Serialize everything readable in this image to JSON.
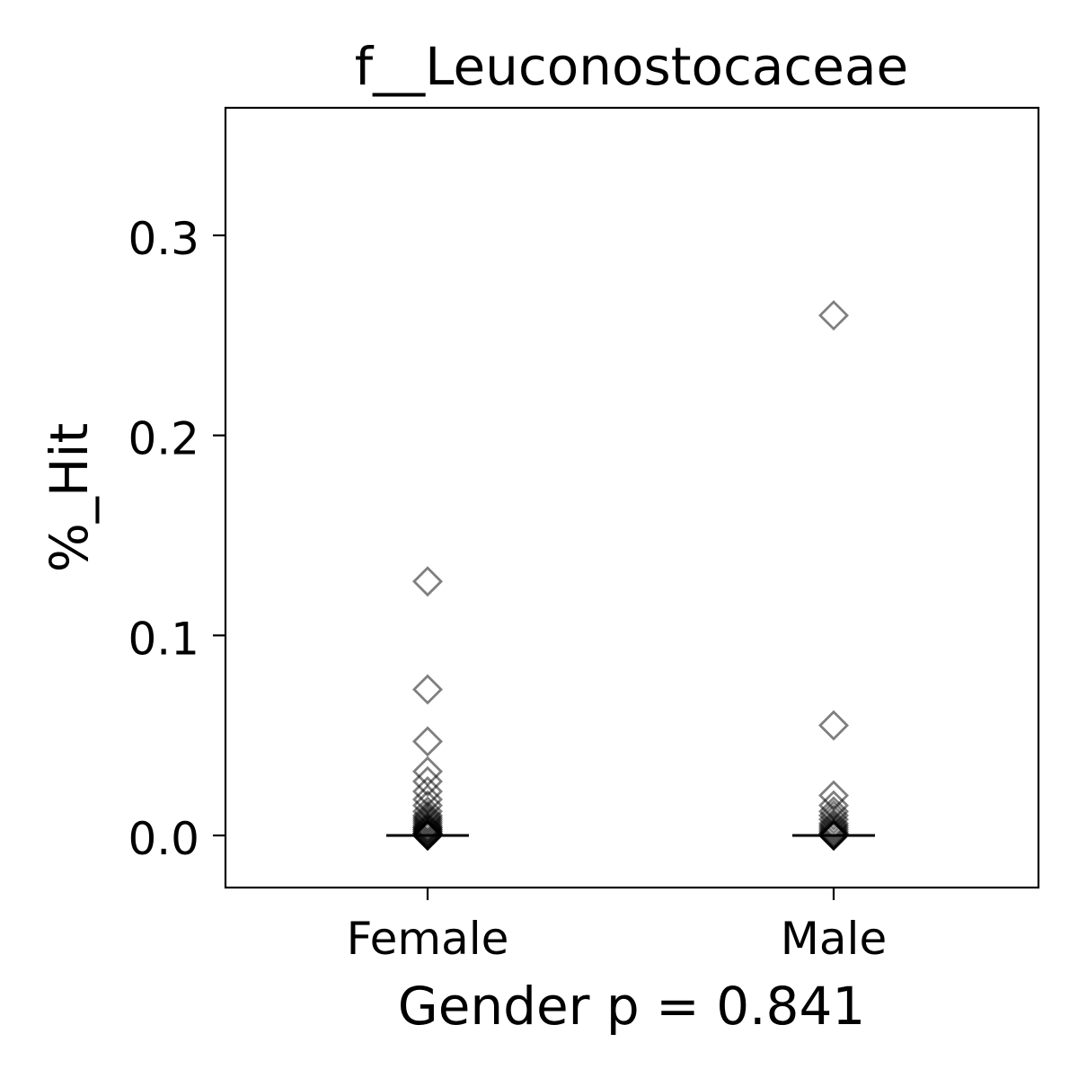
{
  "chart_data": {
    "type": "scatter",
    "title": "f__Leuconostocaceae",
    "xlabel": "Gender p = 0.841",
    "ylabel": "%_Hit",
    "categories": [
      "Female",
      "Male"
    ],
    "ylim": [
      -0.026,
      0.362
    ],
    "yticks": [
      "0.0",
      "0.1",
      "0.2",
      "0.3"
    ],
    "ytick_values": [
      0.0,
      0.1,
      0.2,
      0.3
    ],
    "grid": false,
    "legend": "none",
    "marker": "diamond",
    "marker_color": "#000000",
    "marker_alpha": 0.5,
    "series": [
      {
        "category": "Female",
        "median": 0.0,
        "values": [
          0.127,
          0.073,
          0.047,
          0.032,
          0.027,
          0.022,
          0.018,
          0.015,
          0.012,
          0.01,
          0.009,
          0.008,
          0.007,
          0.006,
          0.005,
          0.004,
          0.004,
          0.003,
          0.003,
          0.002,
          0.002,
          0.001,
          0.001,
          0.001,
          0.0,
          0.0,
          0.0,
          0.0,
          0.0,
          0.0
        ]
      },
      {
        "category": "Male",
        "median": 0.0,
        "values": [
          0.26,
          0.055,
          0.02,
          0.015,
          0.012,
          0.01,
          0.008,
          0.006,
          0.005,
          0.004,
          0.003,
          0.002,
          0.001,
          0.001,
          0.0,
          0.0,
          0.0,
          0.0,
          0.0
        ]
      }
    ]
  }
}
